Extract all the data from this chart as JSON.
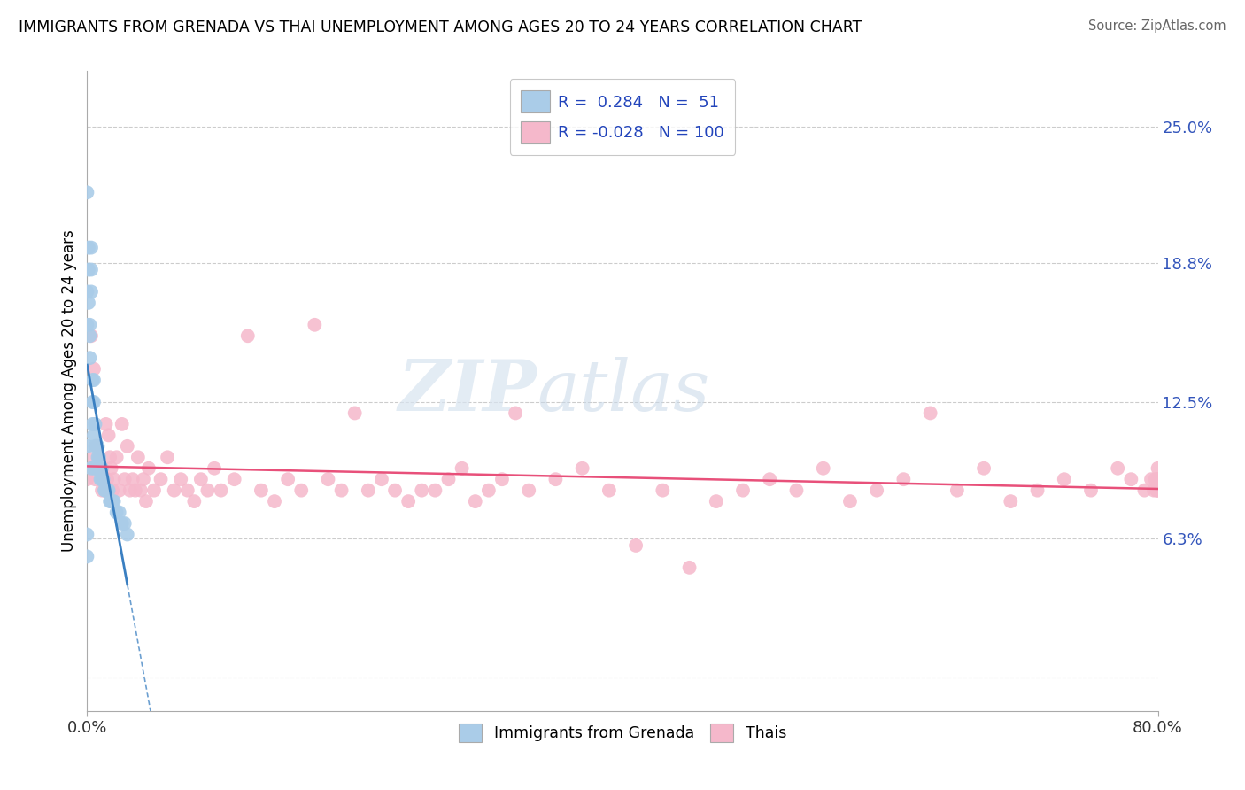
{
  "title": "IMMIGRANTS FROM GRENADA VS THAI UNEMPLOYMENT AMONG AGES 20 TO 24 YEARS CORRELATION CHART",
  "source": "Source: ZipAtlas.com",
  "ylabel": "Unemployment Among Ages 20 to 24 years",
  "watermark_ZIP": "ZIP",
  "watermark_atlas": "atlas",
  "legend_R_blue": "0.284",
  "legend_N_blue": "51",
  "legend_R_pink": "-0.028",
  "legend_N_pink": "100",
  "xlim": [
    0.0,
    0.8
  ],
  "ylim": [
    -0.015,
    0.275
  ],
  "ytick_vals": [
    0.0,
    0.063,
    0.125,
    0.188,
    0.25
  ],
  "blue_color": "#aacce8",
  "blue_line_color": "#3a7fc1",
  "pink_color": "#f5b8cb",
  "pink_line_color": "#e8507a",
  "background_color": "#ffffff",
  "grid_color": "#cccccc",
  "blue_scatter_x": [
    0.0,
    0.0,
    0.0,
    0.0,
    0.0,
    0.0,
    0.001,
    0.001,
    0.001,
    0.002,
    0.002,
    0.002,
    0.003,
    0.003,
    0.003,
    0.003,
    0.004,
    0.004,
    0.004,
    0.005,
    0.005,
    0.005,
    0.005,
    0.006,
    0.006,
    0.006,
    0.007,
    0.007,
    0.008,
    0.008,
    0.008,
    0.009,
    0.009,
    0.01,
    0.01,
    0.011,
    0.011,
    0.012,
    0.013,
    0.014,
    0.015,
    0.016,
    0.017,
    0.018,
    0.019,
    0.02,
    0.022,
    0.024,
    0.026,
    0.028,
    0.03
  ],
  "blue_scatter_y": [
    0.22,
    0.175,
    0.16,
    0.105,
    0.065,
    0.055,
    0.195,
    0.185,
    0.17,
    0.16,
    0.155,
    0.145,
    0.195,
    0.185,
    0.175,
    0.095,
    0.135,
    0.125,
    0.115,
    0.135,
    0.125,
    0.11,
    0.095,
    0.115,
    0.105,
    0.095,
    0.105,
    0.095,
    0.105,
    0.1,
    0.095,
    0.1,
    0.095,
    0.095,
    0.09,
    0.095,
    0.09,
    0.09,
    0.085,
    0.085,
    0.085,
    0.085,
    0.08,
    0.08,
    0.08,
    0.08,
    0.075,
    0.075,
    0.07,
    0.07,
    0.065
  ],
  "pink_scatter_x": [
    0.0,
    0.0,
    0.0,
    0.003,
    0.005,
    0.006,
    0.007,
    0.008,
    0.009,
    0.01,
    0.011,
    0.012,
    0.013,
    0.014,
    0.015,
    0.016,
    0.017,
    0.018,
    0.019,
    0.02,
    0.022,
    0.024,
    0.026,
    0.028,
    0.03,
    0.032,
    0.034,
    0.036,
    0.038,
    0.04,
    0.042,
    0.044,
    0.046,
    0.05,
    0.055,
    0.06,
    0.065,
    0.07,
    0.075,
    0.08,
    0.085,
    0.09,
    0.095,
    0.1,
    0.11,
    0.12,
    0.13,
    0.14,
    0.15,
    0.16,
    0.17,
    0.18,
    0.19,
    0.2,
    0.21,
    0.22,
    0.23,
    0.24,
    0.25,
    0.26,
    0.27,
    0.28,
    0.29,
    0.3,
    0.31,
    0.32,
    0.33,
    0.35,
    0.37,
    0.39,
    0.41,
    0.43,
    0.45,
    0.47,
    0.49,
    0.51,
    0.53,
    0.55,
    0.57,
    0.59,
    0.61,
    0.63,
    0.65,
    0.67,
    0.69,
    0.71,
    0.73,
    0.75,
    0.77,
    0.78,
    0.79,
    0.795,
    0.797,
    0.798,
    0.799,
    0.8,
    0.8,
    0.8,
    0.8,
    0.8
  ],
  "pink_scatter_y": [
    0.1,
    0.095,
    0.09,
    0.155,
    0.14,
    0.09,
    0.105,
    0.095,
    0.1,
    0.095,
    0.085,
    0.09,
    0.085,
    0.115,
    0.09,
    0.11,
    0.1,
    0.095,
    0.085,
    0.09,
    0.1,
    0.085,
    0.115,
    0.09,
    0.105,
    0.085,
    0.09,
    0.085,
    0.1,
    0.085,
    0.09,
    0.08,
    0.095,
    0.085,
    0.09,
    0.1,
    0.085,
    0.09,
    0.085,
    0.08,
    0.09,
    0.085,
    0.095,
    0.085,
    0.09,
    0.155,
    0.085,
    0.08,
    0.09,
    0.085,
    0.16,
    0.09,
    0.085,
    0.12,
    0.085,
    0.09,
    0.085,
    0.08,
    0.085,
    0.085,
    0.09,
    0.095,
    0.08,
    0.085,
    0.09,
    0.12,
    0.085,
    0.09,
    0.095,
    0.085,
    0.06,
    0.085,
    0.05,
    0.08,
    0.085,
    0.09,
    0.085,
    0.095,
    0.08,
    0.085,
    0.09,
    0.12,
    0.085,
    0.095,
    0.08,
    0.085,
    0.09,
    0.085,
    0.095,
    0.09,
    0.085,
    0.09,
    0.085,
    0.09,
    0.085,
    0.095,
    0.09,
    0.085,
    0.09,
    0.085
  ]
}
